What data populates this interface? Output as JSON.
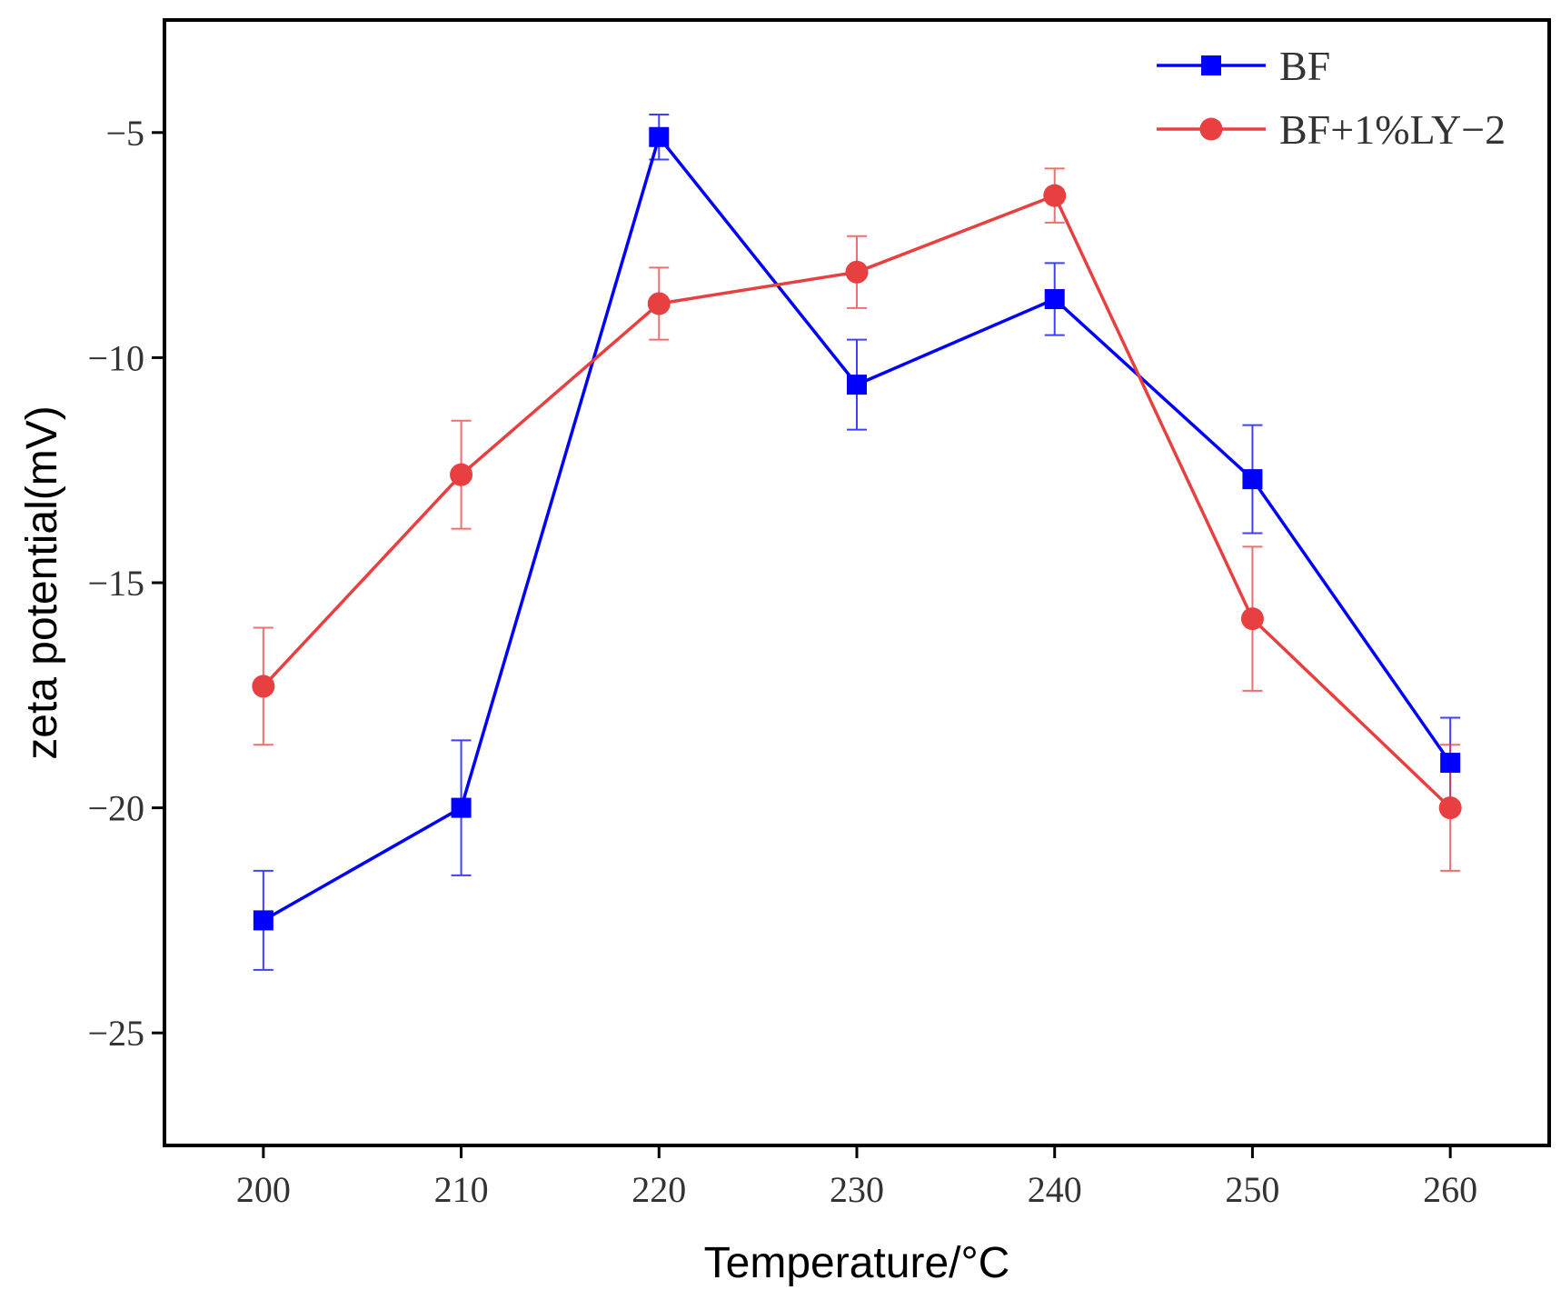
{
  "chart_data": {
    "type": "line",
    "title": "",
    "xlabel": "Temperature/°C",
    "ylabel": "zeta potential(mV)",
    "x": [
      200,
      210,
      220,
      230,
      240,
      250,
      260
    ],
    "xlim": [
      195,
      265
    ],
    "ylim": [
      -27.5,
      -2.5
    ],
    "x_ticks": [
      200,
      210,
      220,
      230,
      240,
      250,
      260
    ],
    "y_ticks": [
      -5,
      -10,
      -15,
      -20,
      -25
    ],
    "x_tick_labels": [
      "200",
      "210",
      "220",
      "230",
      "240",
      "250",
      "260"
    ],
    "y_tick_labels": [
      "-5",
      "-10",
      "-15",
      "-20",
      "-25"
    ],
    "grid": false,
    "legend_position": "top-right",
    "series": [
      {
        "name": "BF",
        "color": "#0000ff",
        "marker": "square",
        "values": [
          -22.5,
          -20.0,
          -5.1,
          -10.6,
          -8.7,
          -12.7,
          -19.0
        ],
        "errors": [
          1.1,
          1.5,
          0.5,
          1.0,
          0.8,
          1.2,
          1.0
        ]
      },
      {
        "name": "BF+1%LY-2",
        "color": "#e84040",
        "marker": "circle",
        "values": [
          -17.3,
          -12.6,
          -8.8,
          -8.1,
          -6.4,
          -15.8,
          -20.0
        ],
        "errors": [
          1.3,
          1.2,
          0.8,
          0.8,
          0.6,
          1.6,
          1.4
        ]
      }
    ]
  }
}
